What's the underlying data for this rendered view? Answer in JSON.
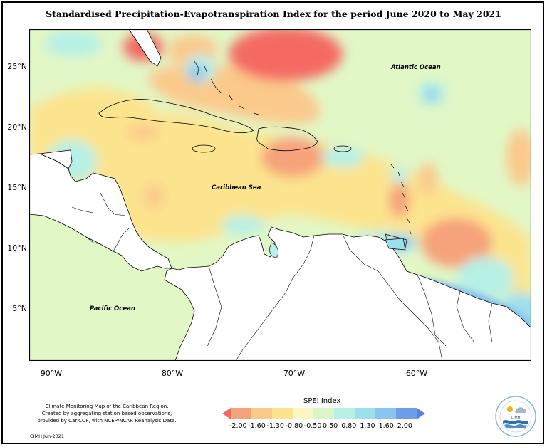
{
  "title": "Standardised Precipitation-Evapotranspiration Index for the period June 2020 to May 2021",
  "map": {
    "y_ticks": [
      "25°N",
      "20°N",
      "15°N",
      "10°N",
      "5°N"
    ],
    "x_ticks": [
      "90°W",
      "80°W",
      "70°W",
      "60°W"
    ],
    "region_labels": {
      "atlantic": "Atlantic Ocean",
      "caribbean": "Caribbean Sea",
      "pacific": "Pacific Ocean"
    }
  },
  "legend": {
    "title": "SPEI Index",
    "values": [
      "-2.00",
      "-1.60",
      "-1.30",
      "-0.80",
      "-0.50",
      "0.50",
      "0.80",
      "1.30",
      "1.60",
      "2.00"
    ],
    "colors": [
      "#f46a63",
      "#f6a27a",
      "#fbc98c",
      "#fce48f",
      "#fbf6c4",
      "#d9f6c8",
      "#b6f0e6",
      "#9be0ec",
      "#8ac4f0",
      "#6f9de6",
      "#5a7fdc"
    ]
  },
  "credits": {
    "line1": "Climate Monitoring Map of the Caribbean Region.",
    "line2": "Created by aggregating station based observations,",
    "line3": "provided by CariCOF, with NCEP/NCAR Reanalysis Data.",
    "footer": "CIMH Jun-2021"
  },
  "logo": {
    "text": "CIMH",
    "icon": "cimh-logo-icon"
  }
}
